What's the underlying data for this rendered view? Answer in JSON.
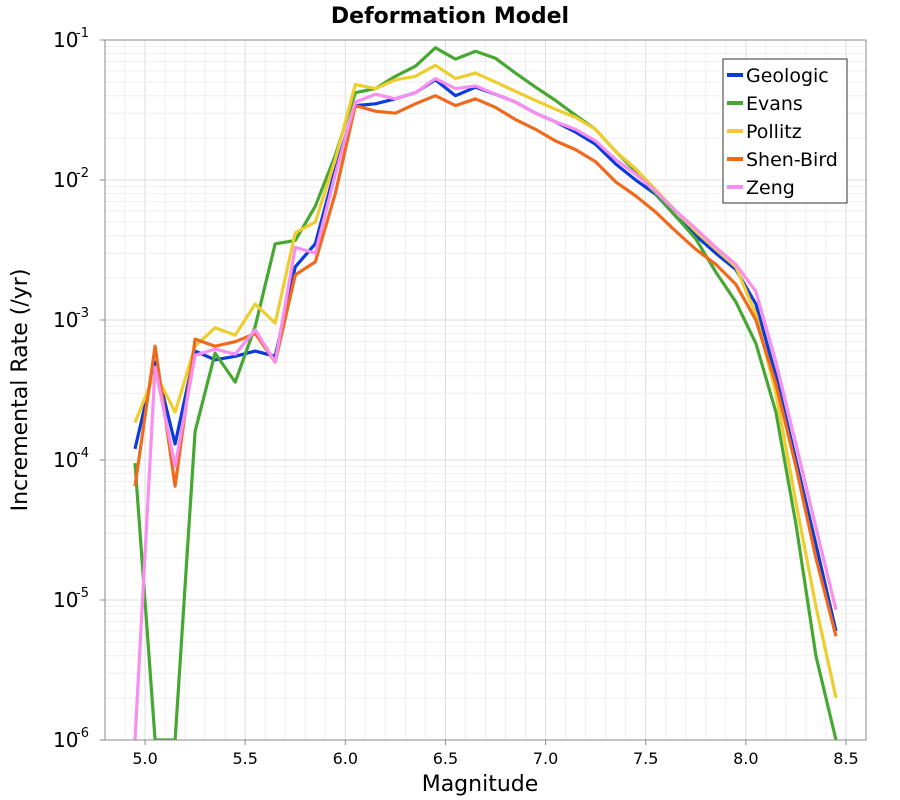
{
  "chart_data": {
    "type": "line",
    "title": "Deformation Model",
    "xlabel": "Magnitude",
    "ylabel": "Incremental Rate (/yr)",
    "xlim": [
      4.8,
      8.6
    ],
    "ylim": [
      1e-06,
      0.1
    ],
    "yscale": "log",
    "grid": true,
    "legend_position": "top-right",
    "xticks": [
      "5.0",
      "5.5",
      "6.0",
      "6.5",
      "7.0",
      "7.5",
      "8.0",
      "8.5"
    ],
    "yticks": [
      {
        "base": "10",
        "exp": "-1"
      },
      {
        "base": "10",
        "exp": "-2"
      },
      {
        "base": "10",
        "exp": "-3"
      },
      {
        "base": "10",
        "exp": "-4"
      },
      {
        "base": "10",
        "exp": "-5"
      },
      {
        "base": "10",
        "exp": "-6"
      }
    ],
    "x": [
      4.95,
      5.05,
      5.15,
      5.25,
      5.35,
      5.45,
      5.55,
      5.65,
      5.75,
      5.85,
      5.95,
      6.05,
      6.15,
      6.25,
      6.35,
      6.45,
      6.55,
      6.65,
      6.75,
      6.85,
      6.95,
      7.05,
      7.15,
      7.25,
      7.35,
      7.45,
      7.55,
      7.65,
      7.75,
      7.85,
      7.95,
      8.05,
      8.15,
      8.25,
      8.35,
      8.45
    ],
    "series": [
      {
        "name": "Geologic",
        "color": "#0a3bdc",
        "values": [
          0.00012,
          0.0005,
          0.00013,
          0.0006,
          0.00052,
          0.00055,
          0.0006,
          0.00055,
          0.0024,
          0.0035,
          0.012,
          0.034,
          0.035,
          0.038,
          0.042,
          0.052,
          0.04,
          0.046,
          0.041,
          0.036,
          0.03,
          0.026,
          0.022,
          0.018,
          0.013,
          0.01,
          0.0079,
          0.0055,
          0.004,
          0.003,
          0.0023,
          0.0013,
          0.0004,
          0.0001,
          2.5e-05,
          6e-06
        ]
      },
      {
        "name": "Evans",
        "color": "#46a832",
        "values": [
          9.5e-05,
          1e-06,
          1e-06,
          0.00016,
          0.00058,
          0.00036,
          0.0009,
          0.0035,
          0.0037,
          0.0065,
          0.015,
          0.042,
          0.045,
          0.055,
          0.065,
          0.088,
          0.073,
          0.083,
          0.074,
          0.058,
          0.046,
          0.037,
          0.029,
          0.023,
          0.016,
          0.0115,
          0.008,
          0.0055,
          0.0038,
          0.0022,
          0.00135,
          0.00068,
          0.00022,
          3.5e-05,
          4e-06,
          1e-06
        ]
      },
      {
        "name": "Pollitz",
        "color": "#eecd2f",
        "values": [
          0.000185,
          0.00042,
          0.00022,
          0.00065,
          0.00088,
          0.00078,
          0.0013,
          0.00095,
          0.0042,
          0.005,
          0.014,
          0.048,
          0.045,
          0.052,
          0.055,
          0.066,
          0.053,
          0.058,
          0.05,
          0.043,
          0.037,
          0.032,
          0.028,
          0.023,
          0.016,
          0.012,
          0.0085,
          0.006,
          0.0043,
          0.0032,
          0.0024,
          0.0011,
          0.0003,
          5e-05,
          9e-06,
          2e-06
        ]
      },
      {
        "name": "Shen-Bird",
        "color": "#f06a1e",
        "values": [
          6.5e-05,
          0.00065,
          6.5e-05,
          0.00073,
          0.00065,
          0.0007,
          0.0008,
          0.0005,
          0.0021,
          0.0026,
          0.008,
          0.034,
          0.031,
          0.03,
          0.035,
          0.04,
          0.034,
          0.038,
          0.033,
          0.027,
          0.023,
          0.019,
          0.0165,
          0.0135,
          0.0097,
          0.0077,
          0.0059,
          0.0043,
          0.0032,
          0.0025,
          0.0018,
          0.001,
          0.00035,
          9e-05,
          2e-05,
          5.5e-06
        ]
      },
      {
        "name": "Zeng",
        "color": "#f88ef0",
        "values": [
          1e-06,
          0.00046,
          9e-05,
          0.00056,
          0.00062,
          0.00057,
          0.00085,
          0.0005,
          0.0033,
          0.003,
          0.011,
          0.036,
          0.041,
          0.038,
          0.042,
          0.053,
          0.045,
          0.047,
          0.041,
          0.036,
          0.03,
          0.026,
          0.023,
          0.019,
          0.014,
          0.011,
          0.0083,
          0.006,
          0.0045,
          0.0033,
          0.0025,
          0.0016,
          0.0005,
          0.00013,
          3.3e-05,
          8.5e-06
        ]
      }
    ]
  }
}
